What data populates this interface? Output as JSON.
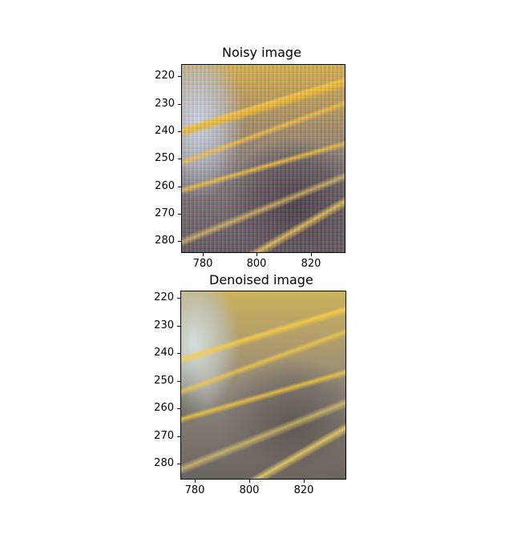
{
  "panels": [
    {
      "title": "Noisy image",
      "y_ticks": [
        "220",
        "230",
        "240",
        "250",
        "260",
        "270",
        "280"
      ],
      "x_ticks": [
        "780",
        "800",
        "820"
      ]
    },
    {
      "title": "Denoised image",
      "y_ticks": [
        "220",
        "230",
        "240",
        "250",
        "260",
        "270",
        "280"
      ],
      "x_ticks": [
        "780",
        "800",
        "820"
      ]
    }
  ]
}
